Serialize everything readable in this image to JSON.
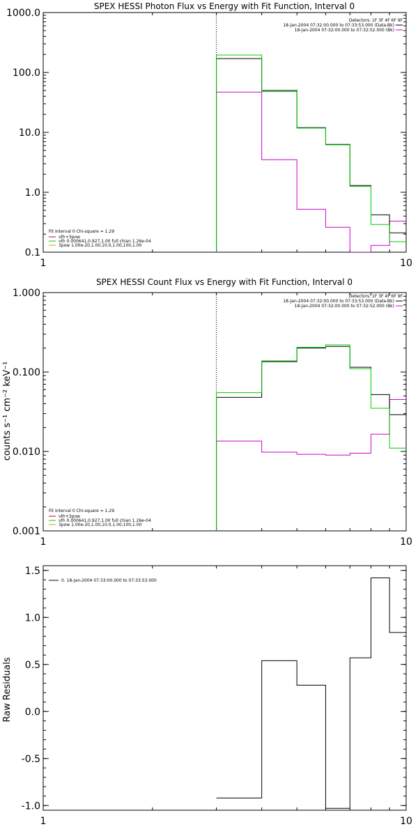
{
  "colors": {
    "background": "#ffffff",
    "axis": "#000000",
    "data": "#000000",
    "model": "#00cc00",
    "background_model": "#cc00cc",
    "spov": "#d0a000",
    "vth": "#00cc00",
    "vth_spov": "#cc0000"
  },
  "chart_data": [
    {
      "id": "photon",
      "type": "line",
      "title": "SPEX HESSI Photon Flux vs Energy with Fit Function, Interval 0",
      "xlabel": "",
      "ylabel": "",
      "xscale": "log",
      "yscale": "log",
      "xlim": [
        1,
        10
      ],
      "ylim": [
        0.1,
        1000
      ],
      "xticks": [
        "1",
        "10"
      ],
      "yticks": [
        "0.1",
        "1.0",
        "10.0",
        "100.0",
        "1000.0"
      ],
      "yticks_values": [
        0.1,
        1,
        10,
        100,
        1000
      ],
      "vline_x": 3,
      "header_lines": [
        "Detectors: 1F 3F 4F 6F 9F",
        "18-Jan-2004 07:32:00.000 to 07:33:53.000 (Data-Bk)",
        "18-Jan-2004 07:32:00.000 to 07:32:52.000 (Bk)"
      ],
      "legend": [
        "Fit Interval 0   Chi-square = 1.29",
        "vth+3pow",
        "vth 0.000641,0.927,1.00  full chian 1.26e-04",
        "3pow 1.00e-20,1.00,10.0,1.00,100,1.00"
      ],
      "edges": [
        3,
        4,
        5,
        6,
        7,
        8,
        9,
        10
      ],
      "series": [
        {
          "role": "data",
          "values": [
            170,
            50,
            12,
            6.3,
            1.3,
            0.42,
            0.21
          ]
        },
        {
          "role": "model",
          "values": [
            195,
            48,
            11.8,
            6.2,
            1.25,
            0.29,
            0.15
          ]
        },
        {
          "role": "background",
          "values": [
            47,
            3.5,
            0.52,
            0.26,
            0.1,
            0.13,
            0.33
          ]
        }
      ]
    },
    {
      "id": "count",
      "type": "line",
      "title": "SPEX HESSI Count Flux vs Energy with Fit Function, Interval 0",
      "xlabel": "",
      "ylabel": "counts s⁻¹ cm⁻² keV⁻¹",
      "xscale": "log",
      "yscale": "log",
      "xlim": [
        1,
        10
      ],
      "ylim": [
        0.001,
        1
      ],
      "xticks": [
        "1",
        "10"
      ],
      "yticks": [
        "0.001",
        "0.010",
        "0.100",
        "1.000"
      ],
      "yticks_values": [
        0.001,
        0.01,
        0.1,
        1
      ],
      "vline_x": 3,
      "header_lines": [
        "Detectors: 1F 3F 4F 6F 9F",
        "18-Jan-2004 07:32:00.000 to 07:33:53.000 (Data-Bk)",
        "18-Jan-2004 07:32:00.000 to 07:32:52.000 (Bk)"
      ],
      "legend": [
        "Fit Interval 0   Chi-square = 1.29",
        "vth+3pow",
        "vth 0.000641,0.927,1.00  full chian 1.26e-04",
        "3pow 1.00e-20,1.00,10.0,1.00,100,1.00"
      ],
      "edges": [
        3,
        4,
        5,
        6,
        7,
        8,
        9,
        10
      ],
      "series": [
        {
          "role": "data",
          "values": [
            0.048,
            0.135,
            0.2,
            0.21,
            0.115,
            0.052,
            0.029
          ]
        },
        {
          "role": "model",
          "values": [
            0.055,
            0.138,
            0.205,
            0.22,
            0.11,
            0.035,
            0.011
          ]
        },
        {
          "role": "background",
          "values": [
            0.0135,
            0.0098,
            0.0092,
            0.009,
            0.0095,
            0.0165,
            0.045
          ]
        }
      ]
    },
    {
      "id": "residuals",
      "type": "line",
      "title": "",
      "xlabel": "",
      "ylabel": "Raw Residuals",
      "xscale": "log",
      "yscale": "linear",
      "xlim": [
        1,
        10
      ],
      "ylim": [
        -1.05,
        1.55
      ],
      "xticks": [
        "1",
        "10"
      ],
      "yticks": [
        "1.5",
        "1.0",
        "0.5",
        "0.0",
        "-0.5",
        "-1.0"
      ],
      "yticks_values": [
        1.5,
        1.0,
        0.5,
        0.0,
        -0.5,
        -1.0
      ],
      "legend": [
        "0. 18-Jan-2004 07:33:00.000 to 07:33:53.000"
      ],
      "edges": [
        3,
        4,
        5,
        6,
        7,
        8,
        9,
        10
      ],
      "series": [
        {
          "role": "data",
          "values": [
            -0.92,
            0.54,
            0.28,
            -1.03,
            0.57,
            1.42,
            0.84
          ]
        }
      ]
    }
  ]
}
